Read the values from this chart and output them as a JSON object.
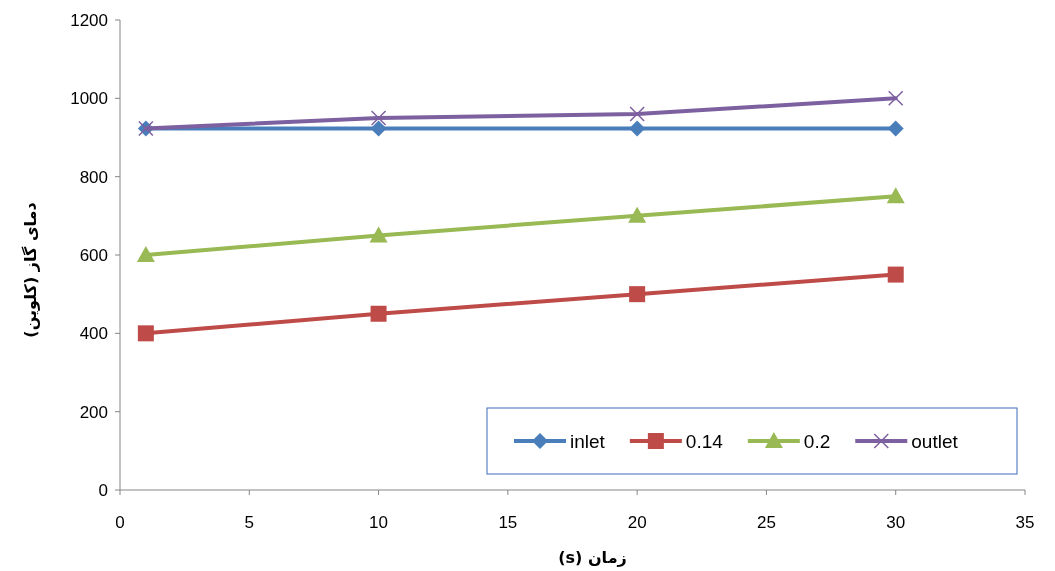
{
  "chart_data": {
    "type": "line",
    "xlabel": "زمان (s)",
    "ylabel": "دمای گاز (کلوین)",
    "x": [
      1,
      10,
      20,
      30
    ],
    "series": [
      {
        "name": "inlet",
        "color": "#4a7ebb",
        "marker": "diamond",
        "values": [
          923,
          923,
          923,
          923
        ]
      },
      {
        "name": "0.14",
        "color": "#be4b48",
        "marker": "square",
        "values": [
          400,
          450,
          500,
          550
        ]
      },
      {
        "name": "0.2",
        "color": "#98b954",
        "marker": "triangle",
        "values": [
          600,
          650,
          700,
          750
        ]
      },
      {
        "name": "outlet",
        "color": "#7d60a0",
        "marker": "cross",
        "values": [
          923,
          950,
          960,
          1000
        ]
      }
    ],
    "xlim": [
      0,
      35
    ],
    "xticks": [
      0,
      5,
      10,
      15,
      20,
      25,
      30,
      35
    ],
    "ylim": [
      0,
      1200
    ],
    "yticks": [
      0,
      200,
      400,
      600,
      800,
      1000,
      1200
    ],
    "grid": false,
    "legend": "bottom right"
  }
}
